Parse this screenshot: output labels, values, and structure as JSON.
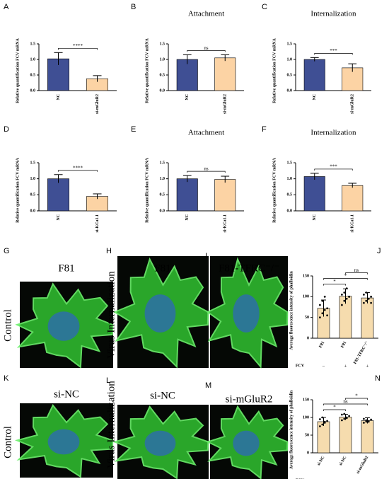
{
  "chart_data": [
    {
      "type": "bar",
      "panel": "A",
      "ylabel": "Relative quantification FCV mRNA",
      "categories": [
        "NC",
        "si-mGluR2"
      ],
      "values": [
        1.02,
        0.38
      ],
      "errors": [
        0.2,
        0.1
      ],
      "colors": [
        "#3f4f94",
        "#fcd3a4"
      ],
      "ylim": [
        0,
        1.5
      ],
      "yticks": [
        {
          "value": 0,
          "label": "0.0"
        },
        0.5,
        {
          "value": 1,
          "label": "1.0"
        },
        1.5
      ],
      "significance": [
        {
          "from": 0,
          "to": 1,
          "label": "****"
        }
      ]
    },
    {
      "type": "bar",
      "panel": "B",
      "title": "Attachment",
      "ylabel": "Relative quantification FCV mRNA",
      "categories": [
        "NC",
        "si-mGluR2"
      ],
      "values": [
        1.0,
        1.05
      ],
      "errors": [
        0.15,
        0.1
      ],
      "colors": [
        "#3f4f94",
        "#fcd3a4"
      ],
      "ylim": [
        0,
        1.5
      ],
      "yticks": [
        {
          "value": 0,
          "label": "0.0"
        },
        0.5,
        {
          "value": 1,
          "label": "1.0"
        },
        1.5
      ],
      "significance": [
        {
          "from": 0,
          "to": 1,
          "label": "ns"
        }
      ]
    },
    {
      "type": "bar",
      "panel": "C",
      "title": "Internalization",
      "ylabel": "Relative quantification FCV mRNA",
      "categories": [
        "NC",
        "si-mGluR2"
      ],
      "values": [
        1.0,
        0.73
      ],
      "errors": [
        0.06,
        0.13
      ],
      "colors": [
        "#3f4f94",
        "#fcd3a4"
      ],
      "ylim": [
        0,
        1.5
      ],
      "yticks": [
        {
          "value": 0,
          "label": "0.0"
        },
        0.5,
        {
          "value": 1,
          "label": "1.0"
        },
        1.5
      ],
      "significance": [
        {
          "from": 0,
          "to": 1,
          "label": "***"
        }
      ]
    },
    {
      "type": "bar",
      "panel": "D",
      "ylabel": "Relative quantification FCV mRNA",
      "categories": [
        "NC",
        "si-KCa1.1"
      ],
      "values": [
        1.0,
        0.45
      ],
      "errors": [
        0.13,
        0.08
      ],
      "colors": [
        "#3f4f94",
        "#fcd3a4"
      ],
      "ylim": [
        0,
        1.5
      ],
      "yticks": [
        {
          "value": 0,
          "label": "0.0"
        },
        0.5,
        {
          "value": 1,
          "label": "1.0"
        },
        1.5
      ],
      "significance": [
        {
          "from": 0,
          "to": 1,
          "label": "****"
        }
      ]
    },
    {
      "type": "bar",
      "panel": "E",
      "title": "Attachment",
      "ylabel": "Relative quantification FCV mRNA",
      "categories": [
        "NC",
        "si-KCa1.1"
      ],
      "values": [
        1.0,
        0.98
      ],
      "errors": [
        0.1,
        0.1
      ],
      "colors": [
        "#3f4f94",
        "#fcd3a4"
      ],
      "ylim": [
        0,
        1.5
      ],
      "yticks": [
        {
          "value": 0,
          "label": "0.0"
        },
        0.5,
        {
          "value": 1,
          "label": "1.0"
        },
        1.5
      ],
      "significance": [
        {
          "from": 0,
          "to": 1,
          "label": "ns"
        }
      ]
    },
    {
      "type": "bar",
      "panel": "F",
      "title": "Internalization",
      "ylabel": "Relative quantification FCV mRNA",
      "categories": [
        "NC",
        "si-KCa1.1"
      ],
      "values": [
        1.07,
        0.79
      ],
      "errors": [
        0.1,
        0.07
      ],
      "colors": [
        "#3f4f94",
        "#fcd3a4"
      ],
      "ylim": [
        0,
        1.5
      ],
      "yticks": [
        {
          "value": 0,
          "label": "0.0"
        },
        0.5,
        {
          "value": 1,
          "label": "1.0"
        },
        1.5
      ],
      "significance": [
        {
          "from": 0,
          "to": 1,
          "label": "***"
        }
      ]
    },
    {
      "type": "bar",
      "panel": "J",
      "ylabel": "Average fluorescence intensity of phalloidin",
      "categories": [
        "F81",
        "F81",
        "F81-TFRC⁻/⁻"
      ],
      "values": [
        72,
        101,
        97
      ],
      "errors": [
        20,
        18,
        13
      ],
      "colors": [
        "#f6dcae",
        "#f6dcae",
        "#f6dcae"
      ],
      "points": [
        [
          50,
          60,
          68,
          72,
          80,
          90,
          100,
          55
        ],
        [
          80,
          90,
          95,
          100,
          105,
          110,
          120,
          100
        ],
        [
          85,
          90,
          95,
          100,
          105,
          110,
          95,
          85
        ]
      ],
      "ylim": [
        0,
        150
      ],
      "yticks": [
        0,
        50,
        100,
        150
      ],
      "significance": [
        {
          "from": 0,
          "to": 1,
          "label": "*"
        },
        {
          "from": 0,
          "to": 2,
          "label": "*"
        },
        {
          "from": 1,
          "to": 2,
          "label": "ns"
        }
      ],
      "row_label": "FCV",
      "row_values": [
        "−",
        "+",
        "+"
      ]
    },
    {
      "type": "bar",
      "panel": "N",
      "ylabel": "Average fluorescence intensity of phalloidin",
      "categories": [
        "si-NC",
        "si-NC",
        "si-mGluR2"
      ],
      "values": [
        88,
        101,
        91
      ],
      "errors": [
        12,
        8,
        8
      ],
      "colors": [
        "#f6dcae",
        "#f6dcae",
        "#f6dcae"
      ],
      "points": [
        [
          75,
          80,
          85,
          90,
          95,
          100,
          88
        ],
        [
          92,
          96,
          100,
          104,
          108,
          110,
          98
        ],
        [
          85,
          88,
          90,
          94,
          96,
          92,
          88
        ]
      ],
      "ylim": [
        0,
        150
      ],
      "yticks": [
        0,
        50,
        100,
        150
      ],
      "significance": [
        {
          "from": 0,
          "to": 1,
          "label": "*"
        },
        {
          "from": 0,
          "to": 2,
          "label": "ns"
        },
        {
          "from": 1,
          "to": 2,
          "label": "*"
        }
      ],
      "row_label": "FCV",
      "row_values": [
        "−",
        "+",
        "+"
      ]
    }
  ],
  "images": [
    {
      "panel": "G",
      "title": "F81",
      "row_label": "Control"
    },
    {
      "panel": "H",
      "title": "F81",
      "row_label": "Virus Internalization"
    },
    {
      "panel": "I",
      "title": "F81-TFRC⁻/⁻"
    },
    {
      "panel": "K",
      "title": "si-NC",
      "row_label": "Control"
    },
    {
      "panel": "L",
      "title": "si-NC",
      "row_label": "Virus Internalization"
    },
    {
      "panel": "M",
      "title": "si-mGluR2"
    }
  ]
}
